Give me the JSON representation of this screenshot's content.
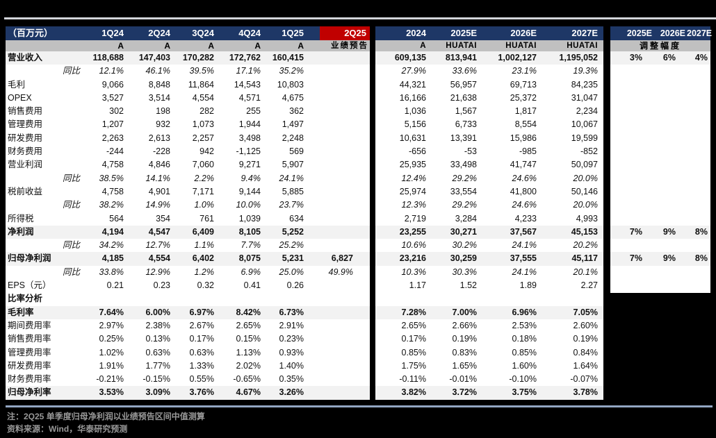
{
  "table": {
    "unit_label": "（百万元）",
    "quarter_headers": [
      "1Q24",
      "2Q24",
      "3Q24",
      "4Q24",
      "1Q25",
      "2Q25"
    ],
    "quarter_subheaders": [
      "A",
      "A",
      "A",
      "A",
      "A",
      "业绩预告"
    ],
    "annual_headers": [
      "2024",
      "2025E",
      "2026E",
      "2027E"
    ],
    "annual_subheaders": [
      "A",
      "HUATAI",
      "HUATAI",
      "HUATAI"
    ],
    "adjust_headers": [
      "2025E",
      "2026E",
      "2027E"
    ],
    "adjust_subheader": "调整幅度",
    "rows": [
      {
        "label": "营业收入",
        "cls": "hl",
        "q": [
          "118,688",
          "147,403",
          "170,282",
          "172,762",
          "160,415",
          ""
        ],
        "a": [
          "609,135",
          "813,941",
          "1,002,127",
          "1,195,052"
        ],
        "adj": [
          "3%",
          "6%",
          "4%"
        ]
      },
      {
        "label": "同比",
        "cls": "yoy",
        "q": [
          "12.1%",
          "46.1%",
          "39.5%",
          "17.1%",
          "35.2%",
          ""
        ],
        "a": [
          "27.9%",
          "33.6%",
          "23.1%",
          "19.3%"
        ]
      },
      {
        "label": "毛利",
        "q": [
          "9,066",
          "8,848",
          "11,864",
          "14,543",
          "10,803",
          ""
        ],
        "a": [
          "44,321",
          "56,957",
          "69,713",
          "84,235"
        ]
      },
      {
        "label": "OPEX",
        "q": [
          "3,527",
          "3,514",
          "4,554",
          "4,571",
          "4,675",
          ""
        ],
        "a": [
          "16,166",
          "21,638",
          "25,372",
          "31,047"
        ]
      },
      {
        "label": "销售费用",
        "q": [
          "302",
          "198",
          "282",
          "255",
          "362",
          ""
        ],
        "a": [
          "1,036",
          "1,567",
          "1,817",
          "2,234"
        ]
      },
      {
        "label": "管理费用",
        "q": [
          "1,207",
          "932",
          "1,073",
          "1,944",
          "1,497",
          ""
        ],
        "a": [
          "5,156",
          "6,733",
          "8,554",
          "10,067"
        ]
      },
      {
        "label": "研发费用",
        "q": [
          "2,263",
          "2,613",
          "2,257",
          "3,498",
          "2,248",
          ""
        ],
        "a": [
          "10,631",
          "13,391",
          "15,986",
          "19,599"
        ]
      },
      {
        "label": "财务费用",
        "q": [
          "-244",
          "-228",
          "942",
          "-1,125",
          "569",
          ""
        ],
        "a": [
          "-656",
          "-53",
          "-985",
          "-852"
        ]
      },
      {
        "label": "营业利润",
        "q": [
          "4,758",
          "4,846",
          "7,060",
          "9,271",
          "5,907",
          ""
        ],
        "a": [
          "25,935",
          "33,498",
          "41,747",
          "50,097"
        ]
      },
      {
        "label": "同比",
        "cls": "yoy",
        "q": [
          "38.5%",
          "14.1%",
          "2.2%",
          "9.4%",
          "24.1%",
          ""
        ],
        "a": [
          "12.4%",
          "29.2%",
          "24.6%",
          "20.0%"
        ]
      },
      {
        "label": "税前收益",
        "q": [
          "4,758",
          "4,901",
          "7,171",
          "9,144",
          "5,885",
          ""
        ],
        "a": [
          "25,974",
          "33,554",
          "41,800",
          "50,146"
        ]
      },
      {
        "label": "同比",
        "cls": "yoy",
        "q": [
          "38.2%",
          "14.9%",
          "1.0%",
          "10.0%",
          "23.7%",
          ""
        ],
        "a": [
          "12.3%",
          "29.2%",
          "24.6%",
          "20.0%"
        ]
      },
      {
        "label": "所得税",
        "q": [
          "564",
          "354",
          "761",
          "1,039",
          "634",
          ""
        ],
        "a": [
          "2,719",
          "3,284",
          "4,233",
          "4,993"
        ]
      },
      {
        "label": "净利润",
        "cls": "hl",
        "q": [
          "4,194",
          "4,547",
          "6,409",
          "8,105",
          "5,252",
          ""
        ],
        "a": [
          "23,255",
          "30,271",
          "37,567",
          "45,153"
        ],
        "adj": [
          "7%",
          "9%",
          "8%"
        ]
      },
      {
        "label": "同比",
        "cls": "yoy",
        "q": [
          "34.2%",
          "12.7%",
          "1.1%",
          "7.7%",
          "25.2%",
          ""
        ],
        "a": [
          "10.6%",
          "30.2%",
          "24.1%",
          "20.2%"
        ]
      },
      {
        "label": "归母净利润",
        "cls": "hl",
        "q": [
          "4,185",
          "4,554",
          "6,402",
          "8,075",
          "5,231",
          "6,827"
        ],
        "a": [
          "23,216",
          "30,259",
          "37,555",
          "45,117"
        ],
        "adj": [
          "7%",
          "9%",
          "8%"
        ]
      },
      {
        "label": "同比",
        "cls": "yoy",
        "q": [
          "33.8%",
          "12.9%",
          "1.2%",
          "6.9%",
          "25.0%",
          "49.9%"
        ],
        "a": [
          "10.3%",
          "30.3%",
          "24.1%",
          "20.1%"
        ]
      },
      {
        "label": "EPS（元）",
        "q": [
          "0.21",
          "0.23",
          "0.32",
          "0.41",
          "0.26",
          ""
        ],
        "a": [
          "1.17",
          "1.52",
          "1.89",
          "2.27"
        ]
      },
      {
        "label": "比率分析",
        "cls": "section",
        "q": [
          "",
          "",
          "",
          "",
          "",
          ""
        ],
        "a": [
          "",
          "",
          "",
          ""
        ]
      },
      {
        "label": "毛利率",
        "cls": "hl",
        "q": [
          "7.64%",
          "6.00%",
          "6.97%",
          "8.42%",
          "6.73%",
          ""
        ],
        "a": [
          "7.28%",
          "7.00%",
          "6.96%",
          "7.05%"
        ]
      },
      {
        "label": "期间费用率",
        "q": [
          "2.97%",
          "2.38%",
          "2.67%",
          "2.65%",
          "2.91%",
          ""
        ],
        "a": [
          "2.65%",
          "2.66%",
          "2.53%",
          "2.60%"
        ]
      },
      {
        "label": "销售费用率",
        "q": [
          "0.25%",
          "0.13%",
          "0.17%",
          "0.15%",
          "0.23%",
          ""
        ],
        "a": [
          "0.17%",
          "0.19%",
          "0.18%",
          "0.19%"
        ]
      },
      {
        "label": "管理费用率",
        "q": [
          "1.02%",
          "0.63%",
          "0.63%",
          "1.13%",
          "0.93%",
          ""
        ],
        "a": [
          "0.85%",
          "0.83%",
          "0.85%",
          "0.84%"
        ]
      },
      {
        "label": "研发费用率",
        "q": [
          "1.91%",
          "1.77%",
          "1.33%",
          "2.02%",
          "1.40%",
          ""
        ],
        "a": [
          "1.75%",
          "1.65%",
          "1.60%",
          "1.64%"
        ]
      },
      {
        "label": "财务费用率",
        "q": [
          "-0.21%",
          "-0.15%",
          "0.55%",
          "-0.65%",
          "0.35%",
          ""
        ],
        "a": [
          "-0.11%",
          "-0.01%",
          "-0.10%",
          "-0.07%"
        ]
      },
      {
        "label": "归母净利率",
        "cls": "hl",
        "q": [
          "3.53%",
          "3.09%",
          "3.76%",
          "4.67%",
          "3.26%",
          ""
        ],
        "a": [
          "3.82%",
          "3.72%",
          "3.75%",
          "3.78%"
        ]
      }
    ]
  },
  "footnotes": {
    "note": "注：2Q25 单季度归母净利润以业绩预告区间中值测算",
    "source": "资料来源：Wind，华泰研究预测"
  },
  "colors": {
    "header_navy": "#1e3766",
    "forecast_red": "#c00000",
    "subheader_gray": "#c0c0c0",
    "highlight_row": "#f2f2f2",
    "page_background": "#000000",
    "panel_background": "#ffffff",
    "top_divider": "#d3d6db",
    "footer_rule": "#93a6c2",
    "note_text": "#989898"
  }
}
